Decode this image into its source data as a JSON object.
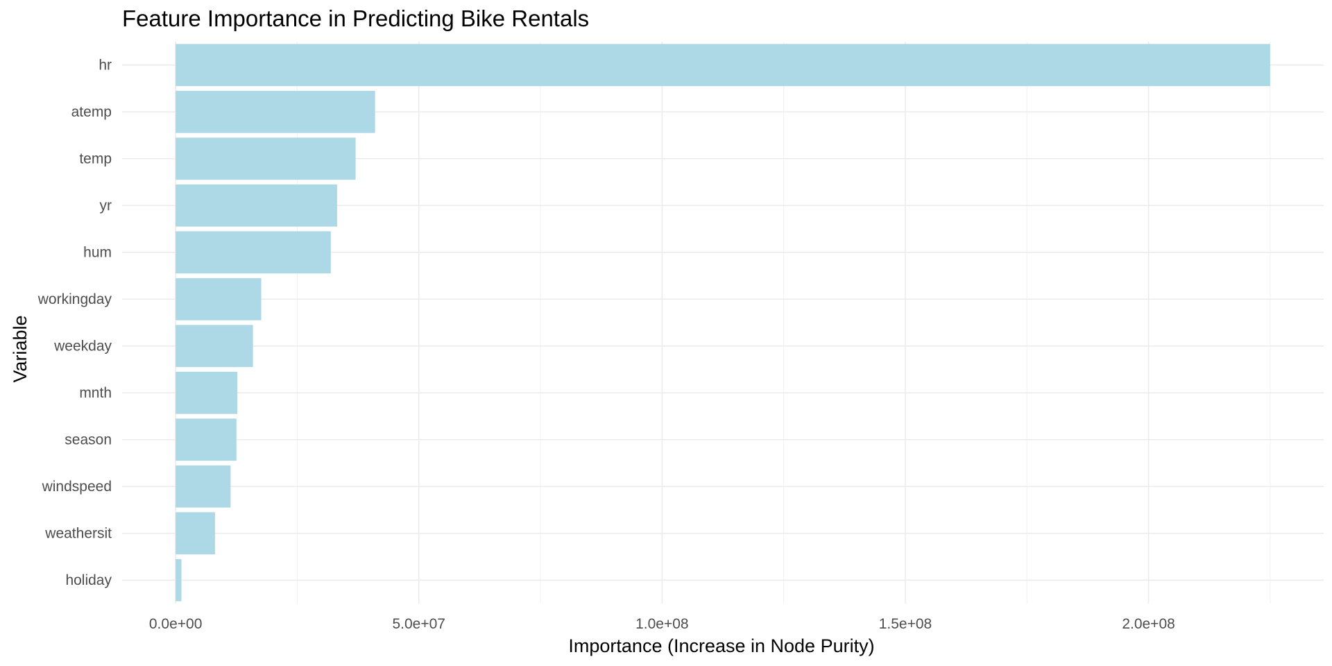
{
  "chart_data": {
    "type": "bar",
    "orientation": "horizontal",
    "title": "Feature Importance in Predicting Bike Rentals",
    "xlabel": "Importance (Increase in Node Purity)",
    "ylabel": "Variable",
    "categories": [
      "hr",
      "atemp",
      "temp",
      "yr",
      "hum",
      "workingday",
      "weekday",
      "mnth",
      "season",
      "windspeed",
      "weathersit",
      "holiday"
    ],
    "values": [
      225000000,
      41000000,
      37000000,
      33200000,
      31900000,
      17600000,
      15900000,
      12700000,
      12500000,
      11300000,
      8100000,
      1200000
    ],
    "xlim": [
      -11000000,
      236000000
    ],
    "x_ticks": [
      0,
      50000000,
      100000000,
      150000000,
      200000000
    ],
    "x_tick_labels": [
      "0.0e+00",
      "5.0e+07",
      "1.0e+08",
      "1.5e+08",
      "2.0e+08"
    ],
    "x_minor_ticks": [
      25000000,
      75000000,
      125000000,
      175000000,
      225000000
    ],
    "grid": true,
    "legend": "none",
    "bar_color": "#add8e6"
  }
}
